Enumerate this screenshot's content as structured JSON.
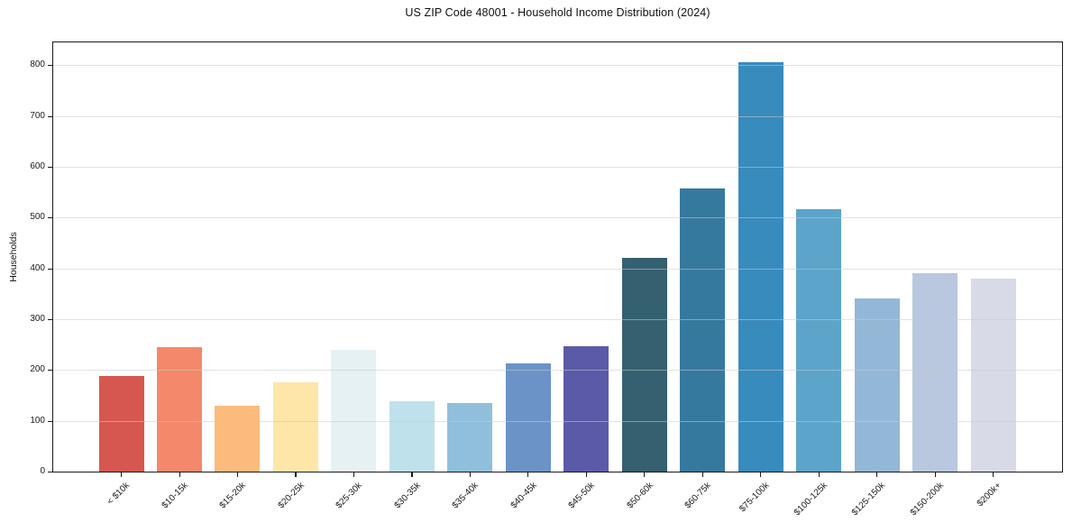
{
  "chart_data": {
    "type": "bar",
    "title": "US ZIP Code 48001 - Household Income Distribution (2024)",
    "xlabel": "",
    "ylabel": "Households",
    "categories": [
      "< $10k",
      "$10-15k",
      "$15-20k",
      "$20-25k",
      "$25-30k",
      "$30-35k",
      "$35-40k",
      "$40-45k",
      "$45-50k",
      "$50-60k",
      "$60-75k",
      "$75-100k",
      "$100-125k",
      "$125-150k",
      "$150-200k",
      "$200k+"
    ],
    "values": [
      188,
      245,
      130,
      176,
      240,
      138,
      135,
      214,
      246,
      420,
      557,
      806,
      516,
      341,
      390,
      380
    ],
    "bar_colors": [
      "#d5574f",
      "#f4886a",
      "#fcbb7c",
      "#fde6a8",
      "#e6f1f4",
      "#bfe1eb",
      "#90bfdb",
      "#6c93c7",
      "#5b5aa8",
      "#35606f",
      "#36799f",
      "#388bbd",
      "#5ca4ca",
      "#93b7d7",
      "#b9c7df",
      "#d8dae8"
    ],
    "ylim": [
      0,
      845
    ],
    "yticks": [
      0,
      100,
      200,
      300,
      400,
      500,
      600,
      700,
      800
    ],
    "grid": "horizontal, drawn over bars",
    "legend": "none"
  },
  "style": {
    "background": "#ffffff",
    "axis_color": "#1a1a1a",
    "grid_color": "#cbcbcb",
    "text_color": "#1a1a1a"
  }
}
